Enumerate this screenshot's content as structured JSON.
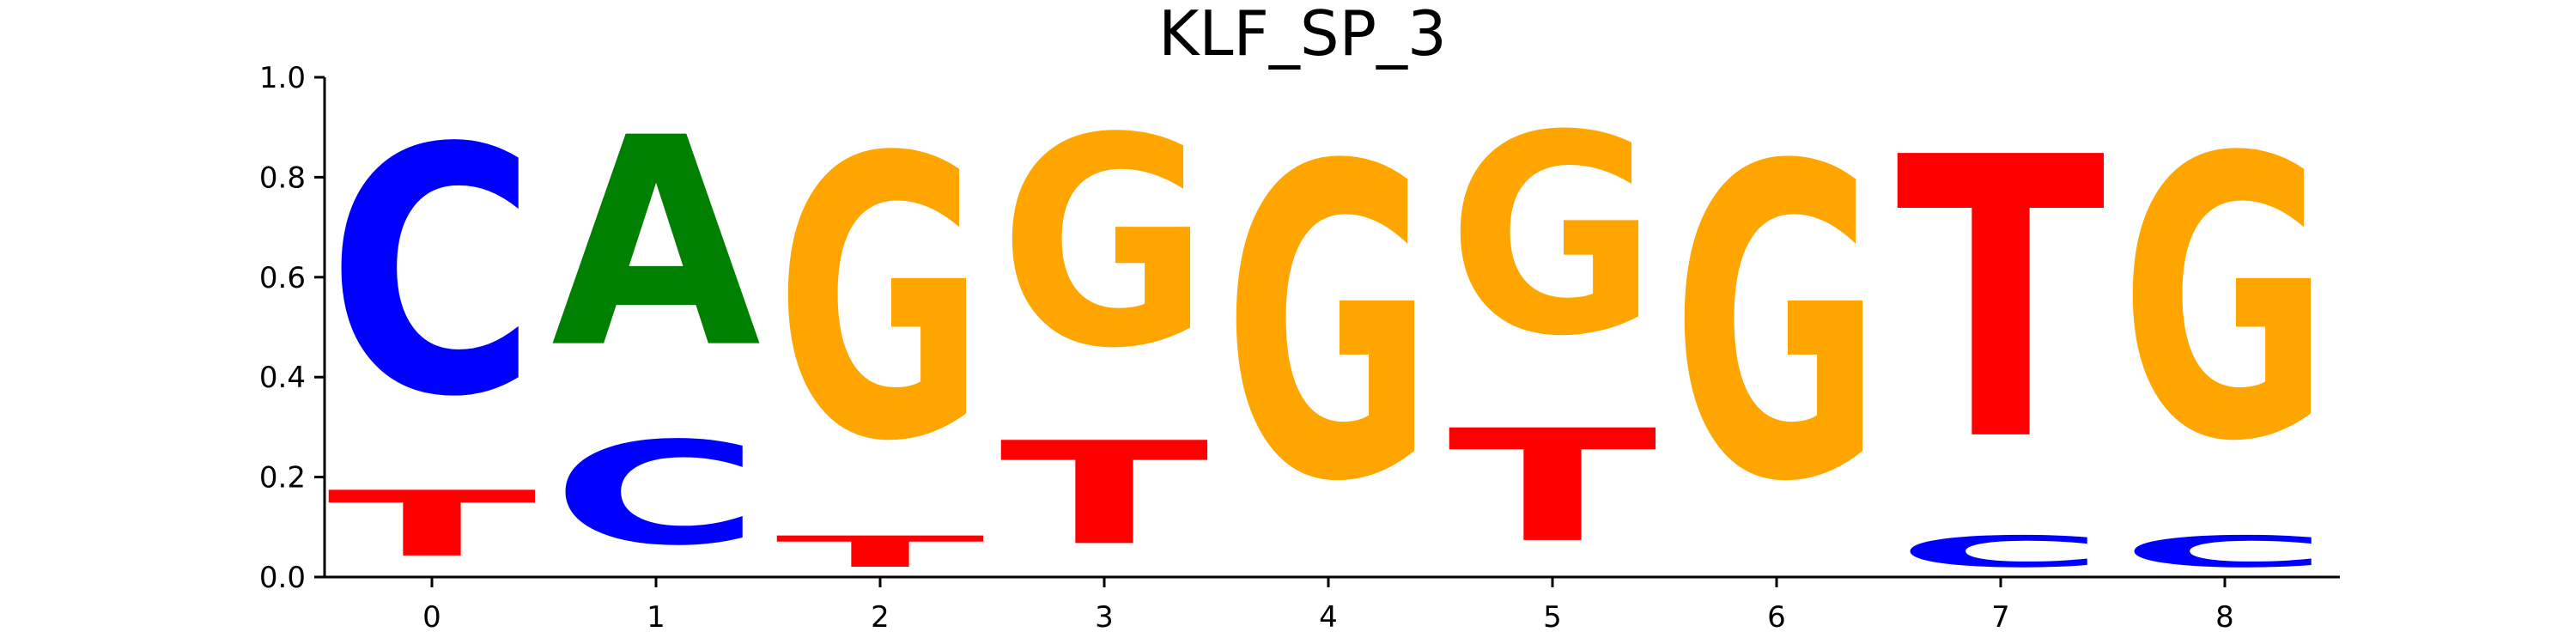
{
  "chart_data": {
    "type": "sequence-logo",
    "title": "KLF_SP_3",
    "xlabel": "",
    "ylabel": "",
    "ylim": [
      0,
      1
    ],
    "x_ticks": [
      "0",
      "1",
      "2",
      "3",
      "4",
      "5",
      "6",
      "7",
      "8"
    ],
    "y_ticks": [
      "0.0",
      "0.2",
      "0.4",
      "0.6",
      "0.8",
      "1.0"
    ],
    "base_colors": {
      "A": "#008000",
      "C": "#0000ff",
      "G": "#ffa500",
      "T": "#ff0000"
    },
    "positions": [
      {
        "pos": 0,
        "letters": [
          {
            "base": "T",
            "value": 0.21
          },
          {
            "base": "C",
            "value": 0.79
          }
        ]
      },
      {
        "pos": 1,
        "letters": [
          {
            "base": "C",
            "value": 0.33
          },
          {
            "base": "A",
            "value": 0.67
          }
        ]
      },
      {
        "pos": 2,
        "letters": [
          {
            "base": "T",
            "value": 0.1
          },
          {
            "base": "G",
            "value": 0.9
          }
        ]
      },
      {
        "pos": 3,
        "letters": [
          {
            "base": "T",
            "value": 0.33
          },
          {
            "base": "G",
            "value": 0.67
          }
        ]
      },
      {
        "pos": 4,
        "letters": [
          {
            "base": "G",
            "value": 1.0
          }
        ]
      },
      {
        "pos": 5,
        "letters": [
          {
            "base": "T",
            "value": 0.36
          },
          {
            "base": "G",
            "value": 0.64
          }
        ]
      },
      {
        "pos": 6,
        "letters": [
          {
            "base": "G",
            "value": 1.0
          }
        ]
      },
      {
        "pos": 7,
        "letters": [
          {
            "base": "C",
            "value": 0.1
          },
          {
            "base": "T",
            "value": 0.9
          }
        ]
      },
      {
        "pos": 8,
        "letters": [
          {
            "base": "C",
            "value": 0.1
          },
          {
            "base": "G",
            "value": 0.9
          }
        ]
      }
    ]
  }
}
